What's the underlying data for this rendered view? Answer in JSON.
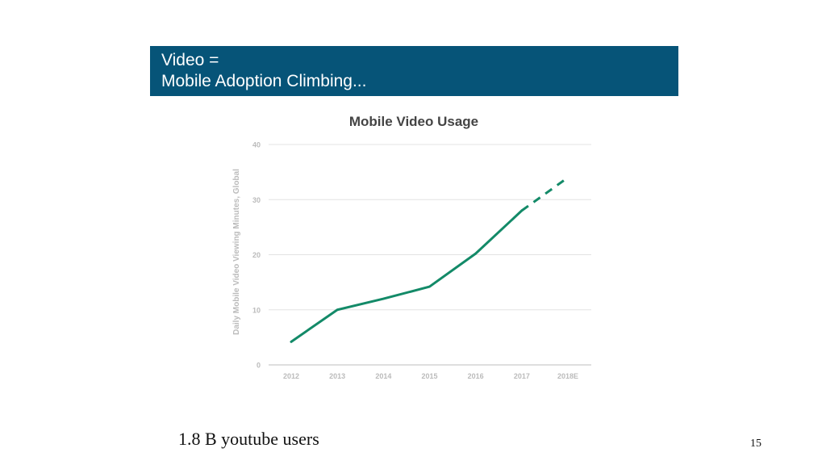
{
  "banner": {
    "line1": "Video =",
    "line2": "Mobile Adoption Climbing..."
  },
  "caption": "1.8 B youtube users",
  "page_number": "15",
  "chart_data": {
    "type": "line",
    "title": "Mobile Video Usage",
    "xlabel": "",
    "ylabel": "Daily Mobile Video Viewing Minutes, Global",
    "categories": [
      "2012",
      "2013",
      "2014",
      "2015",
      "2016",
      "2017",
      "2018E"
    ],
    "series": [
      {
        "values": [
          4.2,
          10,
          12,
          14.2,
          20.2,
          28,
          34
        ],
        "solid_until_index": 5,
        "estimated_from_index": 5,
        "color": "#138a68"
      }
    ],
    "ylim": [
      0,
      40
    ],
    "yticks": [
      0,
      10,
      20,
      30,
      40
    ],
    "grid": true,
    "legend": "none"
  }
}
